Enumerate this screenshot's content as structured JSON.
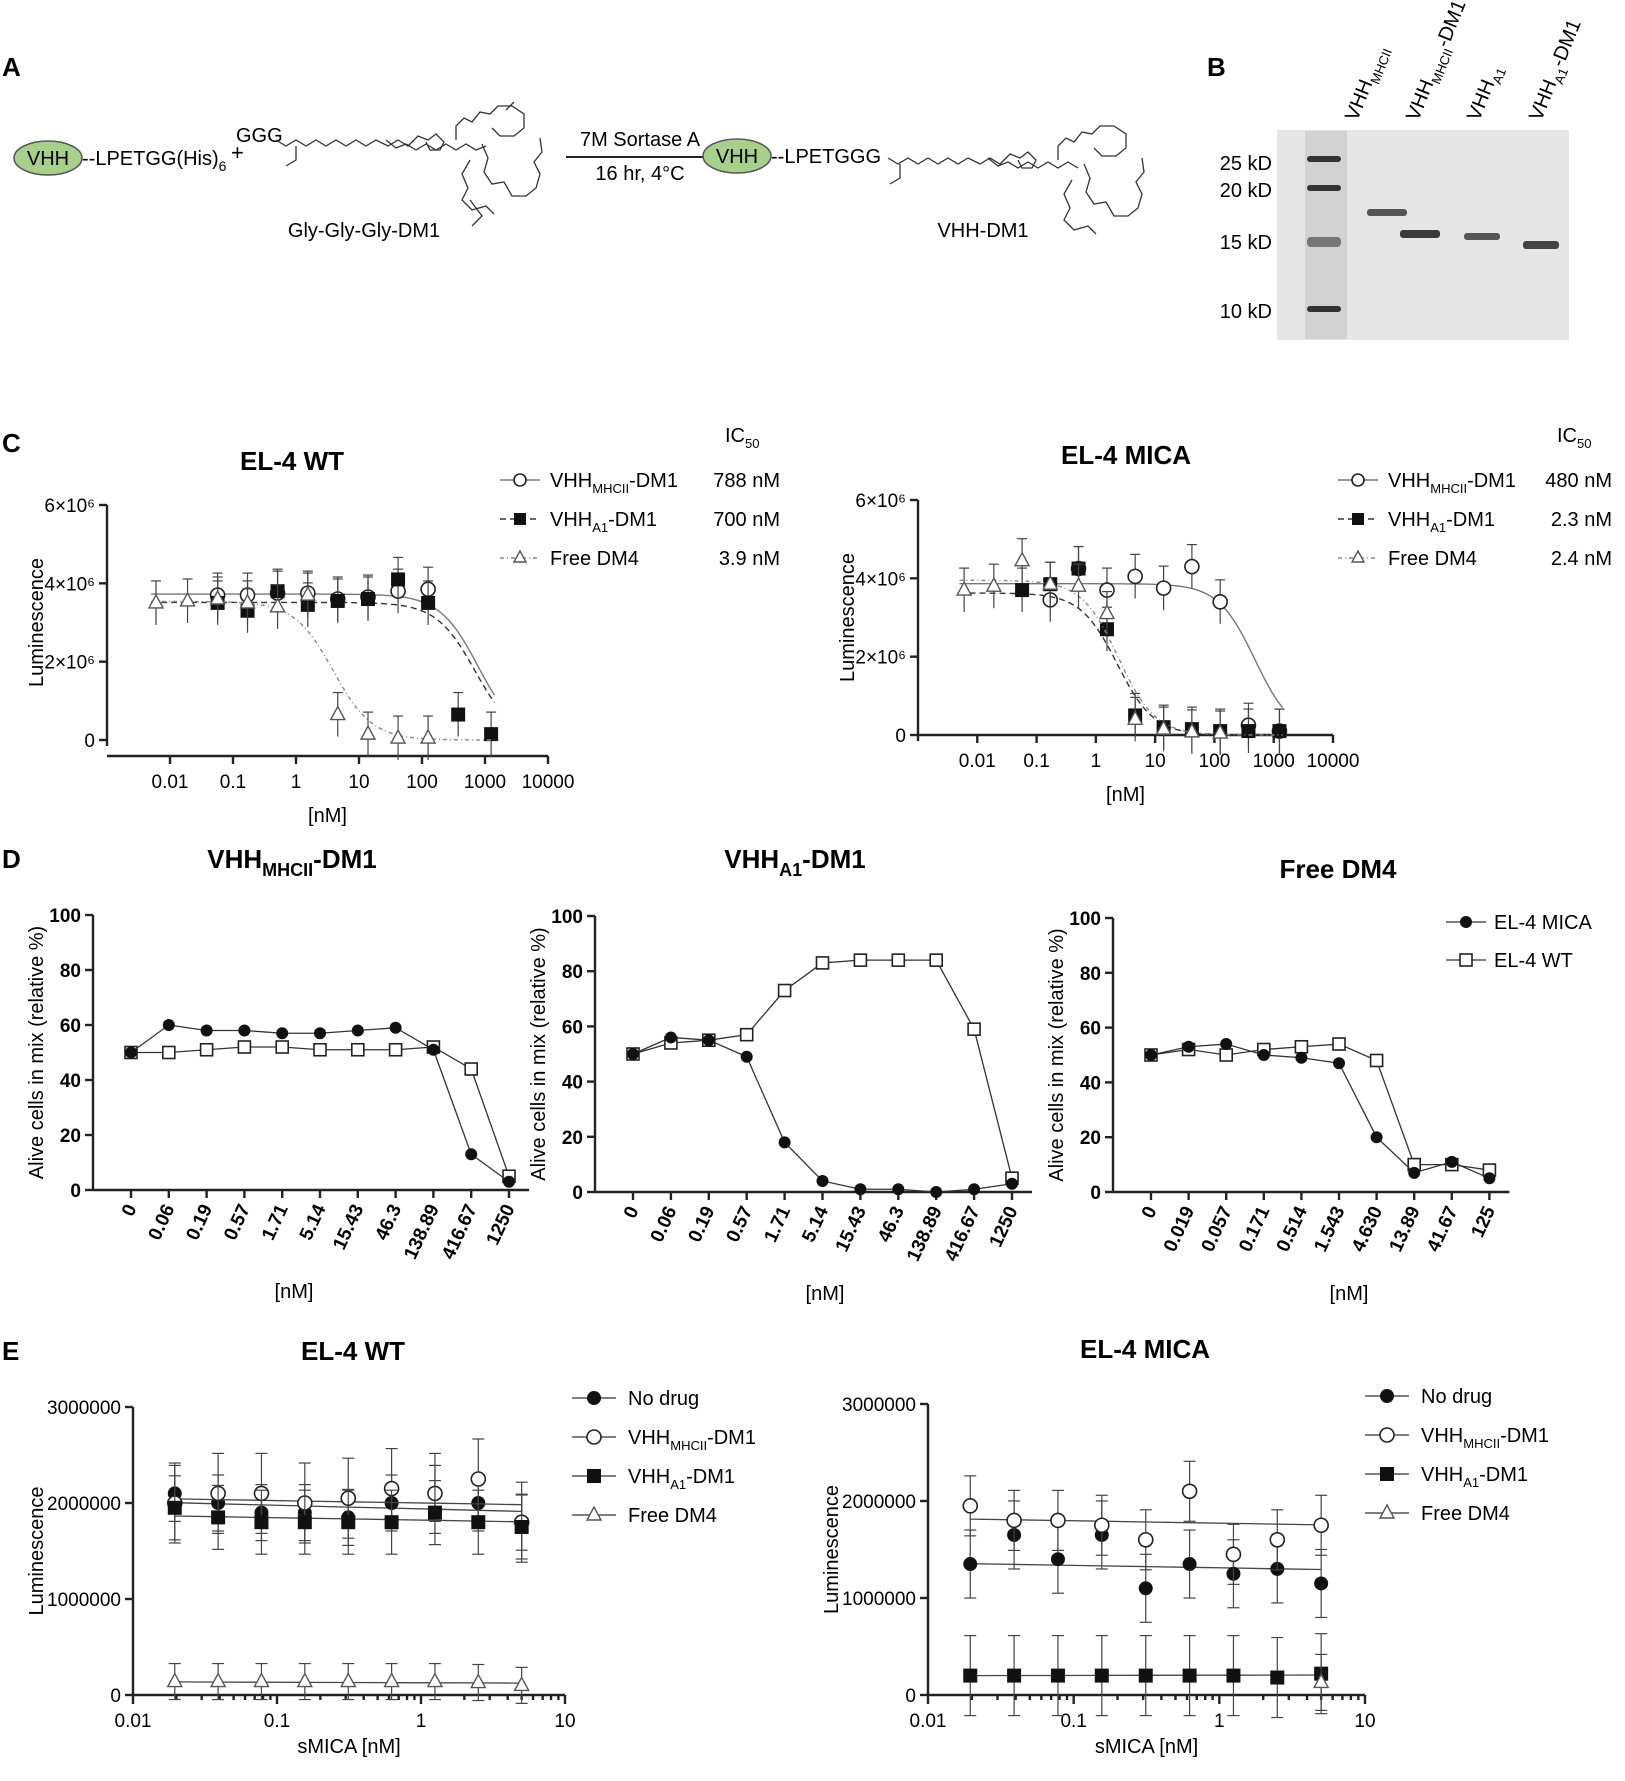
{
  "panels": {
    "A": {
      "label": "A",
      "vhh": "VHH",
      "precursor": "--LPETGG(His)",
      "sub6": "6",
      "plus": "+",
      "ggg": "GGG",
      "reagent_label": "Gly-Gly-Gly-DM1",
      "enzyme": "7M Sortase A",
      "conditions": "16 hr, 4°C",
      "product": "--LPETGGG",
      "product_label": "VHH-DM1"
    },
    "B": {
      "label": "B",
      "lanes": [
        {
          "main": "VHH",
          "sub": "MHCII",
          "tail": ""
        },
        {
          "main": "VHH",
          "sub": "MHCII",
          "tail": "-DM1"
        },
        {
          "main": "VHH",
          "sub": "A1",
          "tail": ""
        },
        {
          "main": "VHH",
          "sub": "A1",
          "tail": "-DM1"
        }
      ],
      "markers": [
        "25 kD",
        "20 kD",
        "15 kD",
        "10 kD"
      ]
    },
    "C": {
      "label": "C"
    },
    "D": {
      "label": "D",
      "legend": [
        "EL-4 MICA",
        "EL-4 WT"
      ]
    },
    "E": {
      "label": "E",
      "legend": [
        {
          "main": "No drug",
          "sub": "",
          "tail": ""
        },
        {
          "main": "VHH",
          "sub": "MHCII",
          "tail": "-DM1"
        },
        {
          "main": "VHH",
          "sub": "A1",
          "tail": "-DM1"
        },
        {
          "main": "Free DM4",
          "sub": "",
          "tail": ""
        }
      ]
    }
  },
  "chart_data": [
    {
      "id": "C-left",
      "type": "scatter",
      "title": "EL-4 WT",
      "xscale": "log",
      "xlabel": "[nM]",
      "ylabel": "Luminescence",
      "ylim": [
        0,
        6000000
      ],
      "yticks": [
        "0",
        "2×10⁶",
        "4×10⁶",
        "6×10⁶"
      ],
      "xticks": [
        "0.01",
        "0.1",
        "1",
        "10",
        "100",
        "1000",
        "10000"
      ],
      "ic50_header": "IC50",
      "series": [
        {
          "name": "VHHMHCII-DM1",
          "ic50": "788 nM",
          "x": [
            0.057,
            0.17,
            0.51,
            1.54,
            4.6,
            13.9,
            41.7,
            125
          ],
          "y": [
            3700000,
            3700000,
            3750000,
            3750000,
            3600000,
            3650000,
            3800000,
            3850000
          ]
        },
        {
          "name": "VHHA1-DM1",
          "ic50": "700 nM",
          "x": [
            0.057,
            0.17,
            0.51,
            1.54,
            4.6,
            13.9,
            41.7,
            125,
            375,
            1250
          ],
          "y": [
            3500000,
            3300000,
            3800000,
            3450000,
            3550000,
            3600000,
            4100000,
            3500000,
            650000,
            150000
          ]
        },
        {
          "name": "Free DM4",
          "ic50": "3.9 nM",
          "x": [
            0.006,
            0.019,
            0.057,
            0.17,
            0.51,
            1.54,
            4.6,
            13.9,
            41.7,
            125
          ],
          "y": [
            3500000,
            3550000,
            3600000,
            3500000,
            3400000,
            3700000,
            650000,
            150000,
            50000,
            50000
          ]
        }
      ]
    },
    {
      "id": "C-right",
      "type": "scatter",
      "title": "EL-4 MICA",
      "xscale": "log",
      "xlabel": "[nM]",
      "ylabel": "Luminescence",
      "ylim": [
        0,
        6000000
      ],
      "yticks": [
        "0",
        "2×10⁶",
        "4×10⁶",
        "6×10⁶"
      ],
      "xticks": [
        "0.01",
        "0.1",
        "1",
        "10",
        "100",
        "1000",
        "10000"
      ],
      "ic50_header": "IC50",
      "series": [
        {
          "name": "VHHMHCII-DM1",
          "ic50": "480 nM",
          "x": [
            0.17,
            0.51,
            1.54,
            4.6,
            13.9,
            41.7,
            125,
            375,
            1250
          ],
          "y": [
            3450000,
            4250000,
            3700000,
            4050000,
            3750000,
            4300000,
            3400000,
            250000,
            100000
          ]
        },
        {
          "name": "VHHA1-DM1",
          "ic50": "2.3 nM",
          "x": [
            0.057,
            0.17,
            0.51,
            1.54,
            4.6,
            13.9,
            41.7,
            125,
            375,
            1250
          ],
          "y": [
            3700000,
            3850000,
            4250000,
            2700000,
            500000,
            200000,
            150000,
            100000,
            100000,
            100000
          ]
        },
        {
          "name": "Free DM4",
          "ic50": "2.4 nM",
          "x": [
            0.006,
            0.019,
            0.057,
            0.17,
            0.51,
            1.54,
            4.6,
            13.9,
            41.7,
            125
          ],
          "y": [
            3700000,
            3800000,
            4450000,
            3850000,
            3800000,
            3100000,
            400000,
            150000,
            80000,
            50000
          ]
        }
      ]
    },
    {
      "id": "D-1",
      "type": "line",
      "title_main": "VHH",
      "title_sub": "MHCII",
      "title_tail": "-DM1",
      "xlabel": "[nM]",
      "ylabel": "Alive cells in mix (relative %)",
      "ylim": [
        0,
        100
      ],
      "categories": [
        "0",
        "0.06",
        "0.19",
        "0.57",
        "1.71",
        "5.14",
        "15.43",
        "46.3",
        "138.89",
        "416.67",
        "1250"
      ],
      "series": [
        {
          "name": "EL-4 MICA",
          "values": [
            50,
            60,
            58,
            58,
            57,
            57,
            58,
            59,
            51,
            13,
            3
          ]
        },
        {
          "name": "EL-4 WT",
          "values": [
            50,
            50,
            51,
            52,
            52,
            51,
            51,
            51,
            52,
            44,
            5
          ]
        }
      ]
    },
    {
      "id": "D-2",
      "type": "line",
      "title_main": "VHH",
      "title_sub": "A1",
      "title_tail": "-DM1",
      "xlabel": "[nM]",
      "ylabel": "Alive cells in mix (relative %)",
      "ylim": [
        0,
        100
      ],
      "categories": [
        "0",
        "0.06",
        "0.19",
        "0.57",
        "1.71",
        "5.14",
        "15.43",
        "46.3",
        "138.89",
        "416.67",
        "1250"
      ],
      "series": [
        {
          "name": "EL-4 MICA",
          "values": [
            50,
            56,
            55,
            49,
            18,
            4,
            1,
            1,
            0,
            1,
            3
          ]
        },
        {
          "name": "EL-4 WT",
          "values": [
            50,
            54,
            55,
            57,
            73,
            83,
            84,
            84,
            84,
            59,
            5
          ]
        }
      ]
    },
    {
      "id": "D-3",
      "type": "line",
      "title_main": "Free DM4",
      "title_sub": "",
      "title_tail": "",
      "xlabel": "[nM]",
      "ylabel": "Alive cells in mix (relative %)",
      "ylim": [
        0,
        100
      ],
      "categories": [
        "0",
        "0.019",
        "0.057",
        "0.171",
        "0.514",
        "1.543",
        "4.630",
        "13.89",
        "41.67",
        "125"
      ],
      "series": [
        {
          "name": "EL-4 MICA",
          "values": [
            50,
            53,
            54,
            50,
            49,
            47,
            20,
            7,
            11,
            5
          ]
        },
        {
          "name": "EL-4 WT",
          "values": [
            50,
            52,
            50,
            52,
            53,
            54,
            48,
            10,
            10,
            8
          ]
        }
      ]
    },
    {
      "id": "E-left",
      "type": "scatter",
      "title": "EL-4 WT",
      "xscale": "log",
      "xlabel": "sMICA [nM]",
      "ylabel": "Luminescence",
      "ylim": [
        0,
        3000000
      ],
      "yticks": [
        "0",
        "1000000",
        "2000000",
        "3000000"
      ],
      "xticks": [
        "0.01",
        "0.1",
        "1",
        "10"
      ],
      "x": [
        0.0195,
        0.039,
        0.078,
        0.156,
        0.3125,
        0.625,
        1.25,
        2.5,
        5
      ],
      "series": [
        {
          "name": "No drug",
          "values": [
            2100000,
            2000000,
            1900000,
            1900000,
            1850000,
            2000000,
            2100000,
            2000000,
            1800000
          ]
        },
        {
          "name": "VHHMHCII-DM1",
          "values": [
            2000000,
            2100000,
            2100000,
            2000000,
            2050000,
            2150000,
            2100000,
            2250000,
            1800000
          ]
        },
        {
          "name": "VHHA1-DM1",
          "values": [
            1950000,
            1850000,
            1800000,
            1800000,
            1800000,
            1800000,
            1900000,
            1800000,
            1750000
          ]
        },
        {
          "name": "Free DM4",
          "values": [
            140000,
            140000,
            140000,
            140000,
            140000,
            140000,
            140000,
            130000,
            100000
          ]
        }
      ]
    },
    {
      "id": "E-right",
      "type": "scatter",
      "title": "EL-4 MICA",
      "xscale": "log",
      "xlabel": "sMICA [nM]",
      "ylabel": "Luminescence",
      "ylim": [
        0,
        3000000
      ],
      "yticks": [
        "0",
        "1000000",
        "2000000",
        "3000000"
      ],
      "xticks": [
        "0.01",
        "0.1",
        "1",
        "10"
      ],
      "x": [
        0.0195,
        0.039,
        0.078,
        0.156,
        0.3125,
        0.625,
        1.25,
        2.5,
        5
      ],
      "series": [
        {
          "name": "No drug",
          "values": [
            1350000,
            1650000,
            1400000,
            1650000,
            1100000,
            1350000,
            1250000,
            1300000,
            1150000
          ]
        },
        {
          "name": "VHHMHCII-DM1",
          "values": [
            1950000,
            1800000,
            1800000,
            1750000,
            1600000,
            2100000,
            1450000,
            1600000,
            1750000
          ]
        },
        {
          "name": "VHHA1-DM1",
          "values": [
            200000,
            200000,
            200000,
            200000,
            200000,
            200000,
            200000,
            180000,
            220000
          ]
        },
        {
          "name": "Free DM4",
          "values": [
            null,
            null,
            null,
            null,
            null,
            null,
            null,
            null,
            130000
          ]
        }
      ]
    }
  ]
}
